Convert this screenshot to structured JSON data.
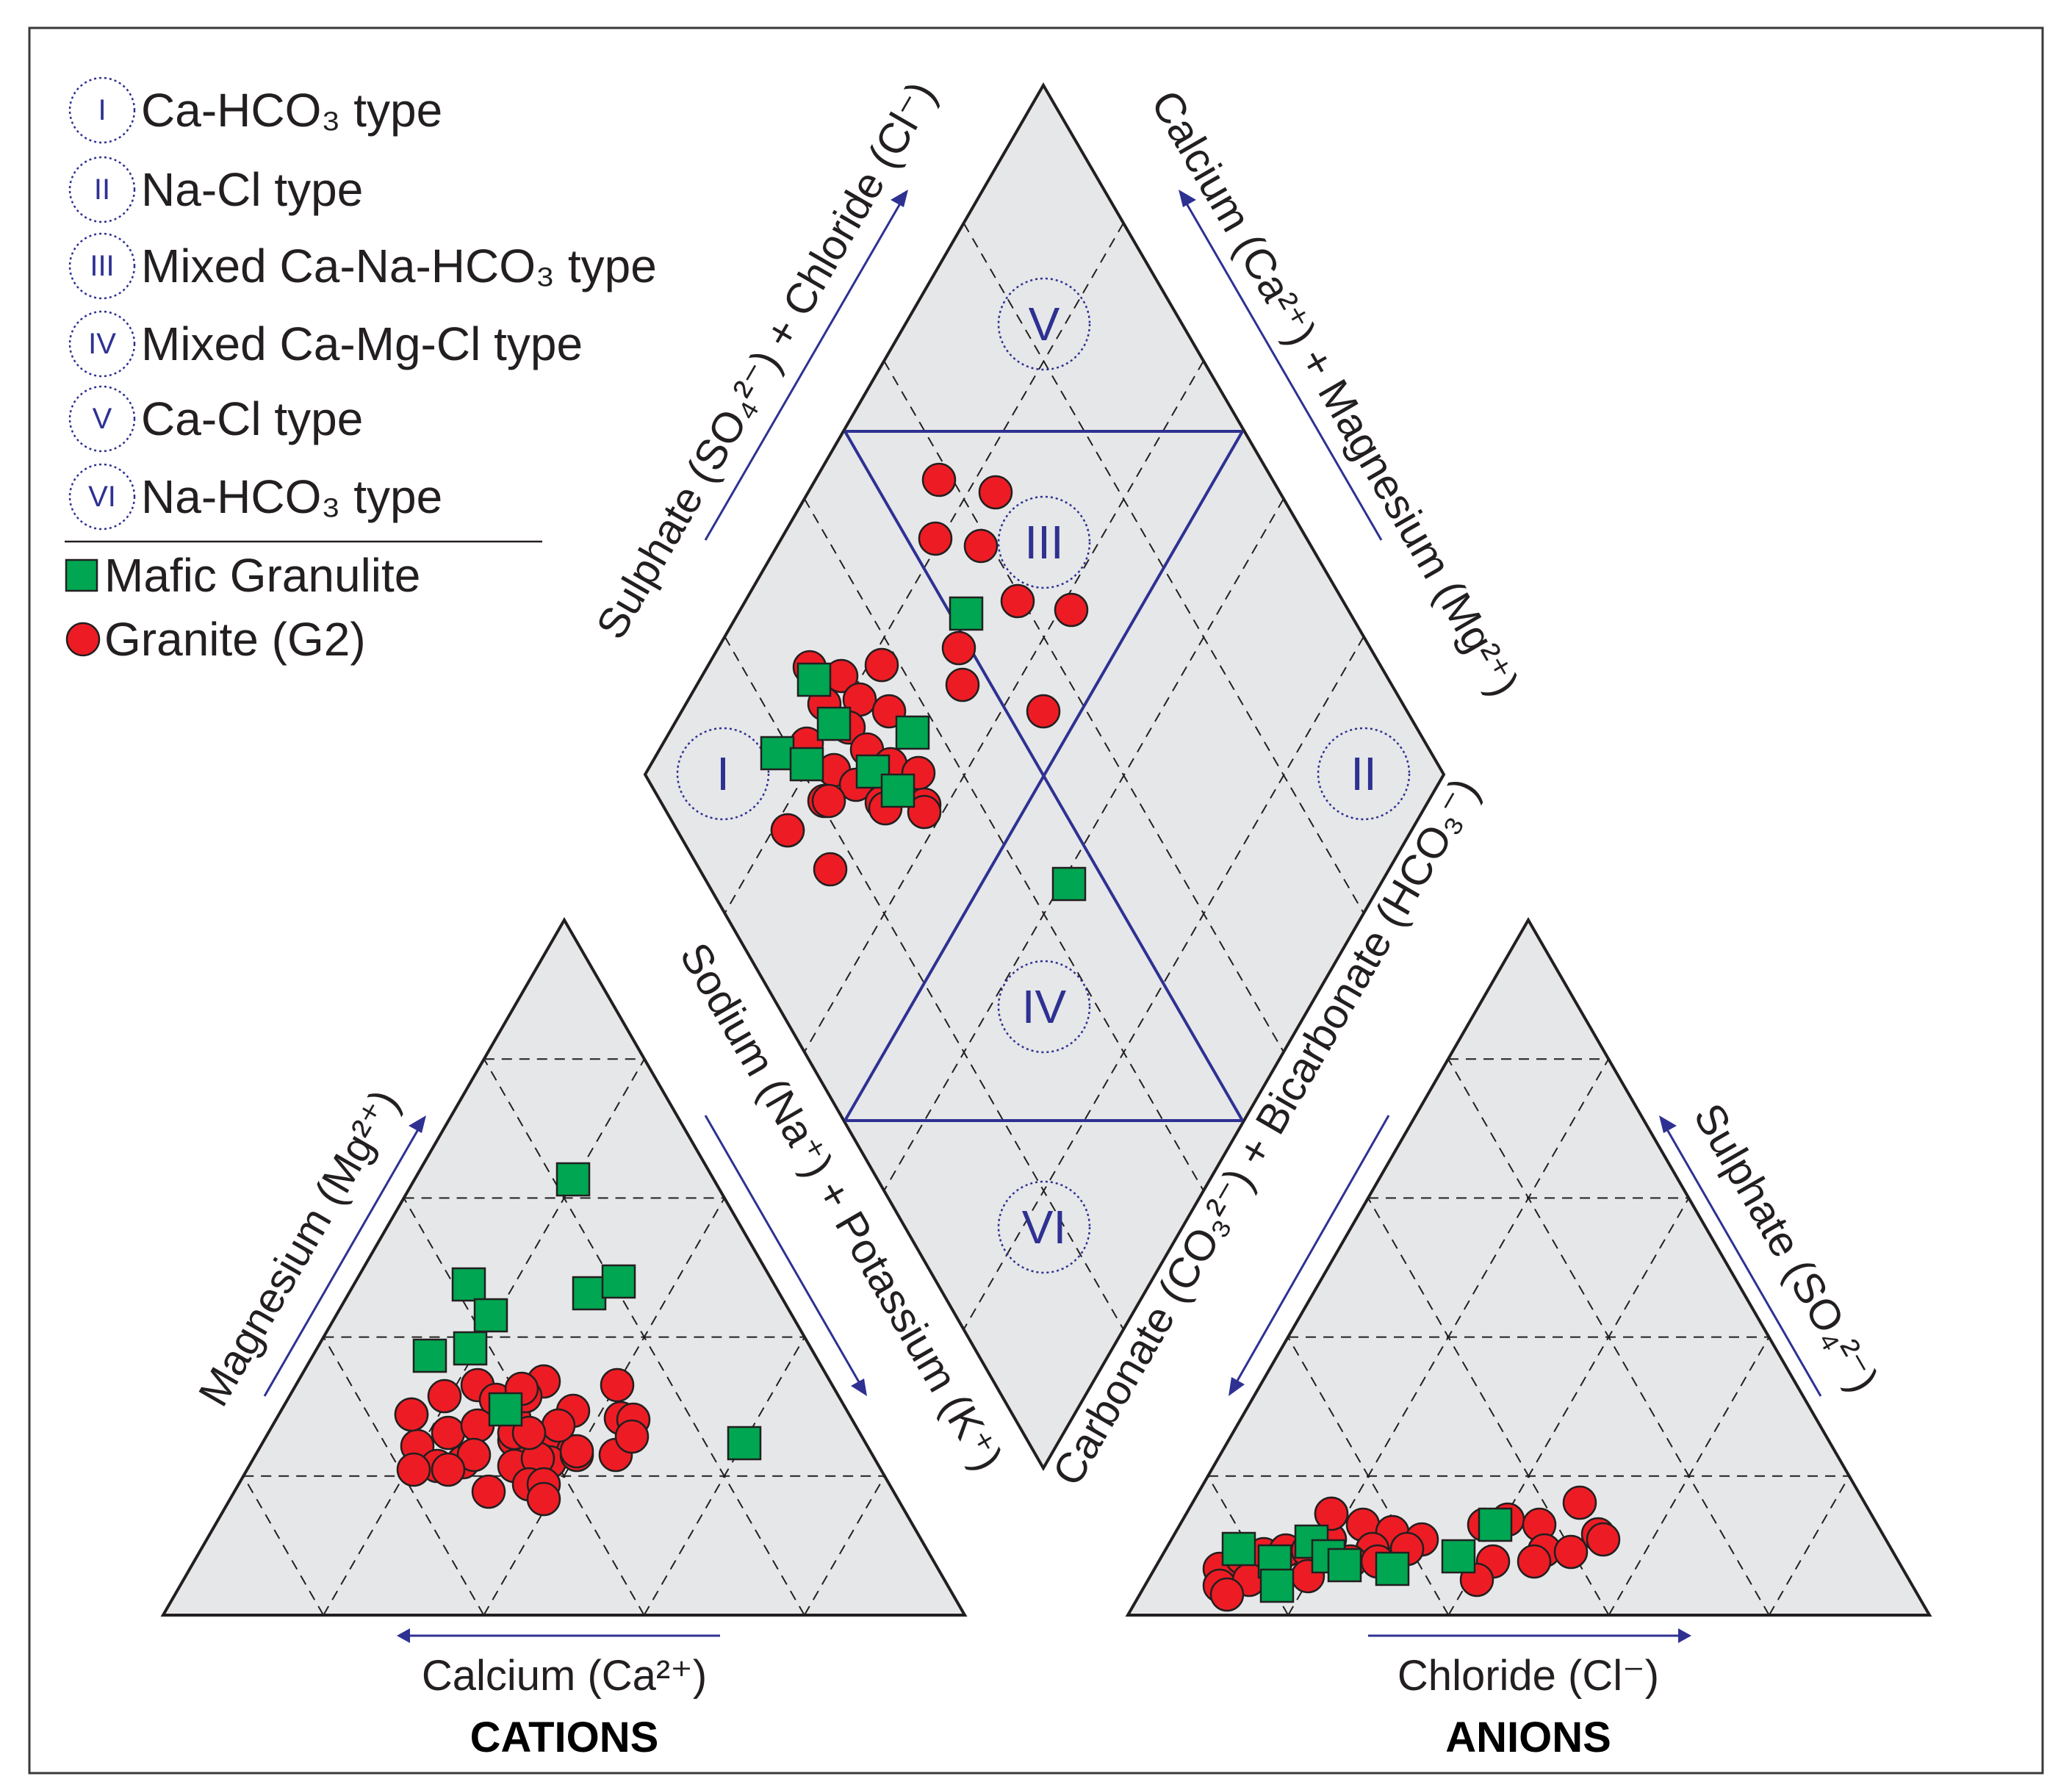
{
  "legend": {
    "zones": [
      {
        "roman": "I",
        "label": "Ca-HCO₃ type"
      },
      {
        "roman": "II",
        "label": "Na-Cl type"
      },
      {
        "roman": "III",
        "label": "Mixed Ca-Na-HCO₃ type"
      },
      {
        "roman": "IV",
        "label": "Mixed Ca-Mg-Cl type"
      },
      {
        "roman": "V",
        "label": "Ca-Cl type"
      },
      {
        "roman": "VI",
        "label": "Na-HCO₃ type"
      }
    ],
    "samples": [
      {
        "label": "Mafic Granulite",
        "marker": "square",
        "color": "#00a651"
      },
      {
        "label": "Granite (G2)",
        "marker": "circle",
        "color": "#ed1c24"
      }
    ]
  },
  "diamond": {
    "zone_labels": [
      "I",
      "II",
      "III",
      "IV",
      "V",
      "VI"
    ],
    "axis_upper_left": "Sulphate (SO₄²⁻) + Chloride (Cl⁻)",
    "axis_upper_right": "Calcium (Ca²⁺) + Magnesium (Mg²⁺)"
  },
  "cations": {
    "title": "CATIONS",
    "axis_left": "Magnesium (Mg²⁺)",
    "axis_right": "Sodium (Na⁺) + Potassium (K⁺)",
    "axis_bottom": "Calcium (Ca²⁺)"
  },
  "anions": {
    "title": "ANIONS",
    "axis_left": "Carbonate (CO₃²⁻) + Bicarbonate (HCO₃⁻)",
    "axis_right": "Sulphate (SO₄²⁻)",
    "axis_bottom": "Chloride (Cl⁻)"
  },
  "colors": {
    "grid_fill": "#e6e7e8",
    "zone_blue": "#2e3192",
    "granite_red": "#ed1c24",
    "granulite_green": "#00a651"
  }
}
